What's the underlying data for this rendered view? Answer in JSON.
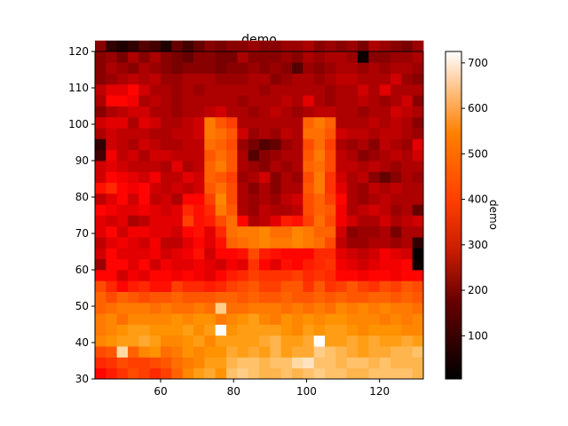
{
  "chart_data": {
    "type": "heatmap",
    "title": "demo",
    "colorbar_label": "demo",
    "colormap": "gist_heat",
    "xlim": [
      42,
      132
    ],
    "ylim": [
      30,
      120
    ],
    "x_ticks": [
      60,
      80,
      100,
      120
    ],
    "y_ticks": [
      30,
      40,
      50,
      60,
      70,
      80,
      90,
      100,
      110,
      120
    ],
    "color_range": [
      5,
      725
    ],
    "colorbar_ticks": [
      100,
      200,
      300,
      400,
      500,
      600,
      700
    ],
    "grid": false,
    "cell_size": 3,
    "x_start": 42,
    "y_start": 30,
    "rows_bottom_to_top": [
      [
        300,
        340,
        380,
        420,
        400,
        360,
        400,
        460,
        520,
        560,
        580,
        540,
        620,
        640,
        620,
        600,
        600,
        620,
        600,
        620,
        640,
        620,
        620,
        600,
        600,
        620,
        620,
        620,
        620,
        600
      ],
      [
        360,
        380,
        420,
        400,
        400,
        420,
        440,
        480,
        500,
        520,
        560,
        560,
        600,
        620,
        620,
        600,
        620,
        620,
        660,
        680,
        620,
        620,
        600,
        620,
        620,
        600,
        620,
        600,
        600,
        600
      ],
      [
        420,
        440,
        660,
        460,
        520,
        540,
        480,
        500,
        540,
        520,
        540,
        540,
        580,
        560,
        580,
        560,
        600,
        560,
        580,
        580,
        640,
        620,
        600,
        580,
        560,
        580,
        580,
        600,
        600,
        620
      ],
      [
        520,
        540,
        560,
        560,
        580,
        560,
        520,
        520,
        540,
        560,
        520,
        560,
        560,
        560,
        560,
        580,
        600,
        560,
        560,
        580,
        725,
        560,
        560,
        580,
        560,
        580,
        560,
        560,
        580,
        560
      ],
      [
        500,
        520,
        540,
        560,
        560,
        540,
        540,
        540,
        560,
        530,
        560,
        725,
        540,
        560,
        560,
        560,
        560,
        540,
        520,
        560,
        540,
        560,
        560,
        540,
        520,
        540,
        540,
        540,
        520,
        520
      ],
      [
        500,
        520,
        480,
        520,
        520,
        520,
        520,
        540,
        520,
        540,
        540,
        500,
        520,
        540,
        560,
        520,
        500,
        540,
        520,
        540,
        520,
        540,
        540,
        520,
        520,
        520,
        500,
        520,
        500,
        520
      ],
      [
        460,
        480,
        500,
        500,
        500,
        480,
        500,
        480,
        480,
        500,
        480,
        640,
        480,
        480,
        500,
        500,
        500,
        480,
        500,
        480,
        500,
        480,
        520,
        500,
        520,
        500,
        520,
        500,
        500,
        480
      ],
      [
        460,
        420,
        460,
        440,
        420,
        440,
        440,
        460,
        440,
        440,
        440,
        460,
        460,
        440,
        460,
        440,
        440,
        460,
        440,
        440,
        460,
        440,
        460,
        440,
        440,
        460,
        460,
        440,
        460,
        440
      ],
      [
        420,
        360,
        300,
        340,
        360,
        320,
        320,
        400,
        360,
        360,
        340,
        360,
        400,
        420,
        440,
        400,
        400,
        440,
        440,
        380,
        440,
        380,
        400,
        440,
        400,
        380,
        420,
        400,
        440,
        420
      ],
      [
        300,
        300,
        240,
        280,
        260,
        300,
        300,
        280,
        300,
        280,
        260,
        300,
        340,
        360,
        400,
        380,
        380,
        380,
        400,
        360,
        380,
        360,
        300,
        300,
        280,
        300,
        300,
        280,
        300,
        300
      ],
      [
        180,
        300,
        300,
        260,
        300,
        240,
        280,
        260,
        260,
        280,
        260,
        240,
        280,
        260,
        380,
        300,
        260,
        320,
        300,
        340,
        360,
        380,
        280,
        260,
        240,
        260,
        280,
        280,
        300,
        20
      ],
      [
        240,
        300,
        260,
        260,
        260,
        280,
        240,
        260,
        280,
        320,
        240,
        300,
        300,
        320,
        420,
        340,
        320,
        300,
        300,
        300,
        360,
        360,
        260,
        240,
        220,
        240,
        280,
        260,
        240,
        10
      ],
      [
        220,
        260,
        280,
        260,
        240,
        280,
        220,
        220,
        260,
        300,
        260,
        320,
        460,
        480,
        500,
        520,
        500,
        500,
        520,
        500,
        480,
        420,
        220,
        180,
        180,
        200,
        200,
        180,
        200,
        60
      ],
      [
        260,
        300,
        240,
        280,
        280,
        260,
        260,
        240,
        300,
        320,
        260,
        360,
        480,
        500,
        500,
        520,
        480,
        480,
        520,
        500,
        460,
        460,
        240,
        160,
        180,
        180,
        200,
        140,
        200,
        200
      ],
      [
        260,
        240,
        260,
        200,
        220,
        260,
        260,
        260,
        400,
        320,
        340,
        420,
        480,
        300,
        200,
        220,
        260,
        340,
        320,
        400,
        480,
        420,
        280,
        240,
        200,
        200,
        240,
        200,
        220,
        240
      ],
      [
        300,
        280,
        260,
        260,
        280,
        260,
        240,
        260,
        360,
        320,
        360,
        500,
        440,
        200,
        180,
        220,
        200,
        200,
        220,
        420,
        460,
        440,
        280,
        200,
        220,
        240,
        220,
        180,
        200,
        120
      ],
      [
        220,
        260,
        300,
        240,
        300,
        220,
        240,
        200,
        300,
        300,
        400,
        520,
        420,
        200,
        180,
        200,
        180,
        220,
        240,
        420,
        460,
        400,
        300,
        200,
        180,
        200,
        220,
        200,
        200,
        200
      ],
      [
        320,
        360,
        300,
        280,
        300,
        240,
        220,
        240,
        220,
        240,
        440,
        480,
        420,
        200,
        160,
        200,
        160,
        200,
        200,
        440,
        500,
        380,
        260,
        200,
        180,
        220,
        200,
        220,
        200,
        200
      ],
      [
        240,
        300,
        280,
        260,
        240,
        280,
        220,
        220,
        260,
        240,
        460,
        440,
        400,
        180,
        200,
        240,
        160,
        200,
        180,
        420,
        500,
        380,
        240,
        200,
        220,
        160,
        120,
        160,
        200,
        180
      ],
      [
        240,
        260,
        240,
        220,
        220,
        220,
        200,
        260,
        200,
        220,
        460,
        500,
        440,
        200,
        180,
        160,
        200,
        180,
        200,
        460,
        480,
        420,
        220,
        220,
        200,
        220,
        200,
        180,
        200,
        200
      ],
      [
        80,
        280,
        220,
        240,
        200,
        240,
        240,
        220,
        220,
        220,
        440,
        480,
        440,
        200,
        100,
        160,
        180,
        200,
        200,
        440,
        500,
        420,
        220,
        200,
        160,
        180,
        200,
        220,
        200,
        240
      ],
      [
        60,
        240,
        220,
        200,
        240,
        220,
        200,
        200,
        220,
        220,
        480,
        460,
        420,
        180,
        140,
        100,
        120,
        180,
        200,
        420,
        480,
        400,
        200,
        180,
        200,
        160,
        220,
        200,
        180,
        260
      ],
      [
        200,
        240,
        220,
        220,
        220,
        200,
        200,
        220,
        220,
        240,
        500,
        480,
        440,
        240,
        180,
        200,
        180,
        220,
        200,
        480,
        480,
        440,
        240,
        220,
        220,
        200,
        220,
        220,
        200,
        180
      ],
      [
        240,
        260,
        260,
        200,
        260,
        240,
        200,
        200,
        220,
        240,
        500,
        440,
        400,
        200,
        200,
        200,
        200,
        200,
        200,
        460,
        500,
        460,
        200,
        200,
        200,
        220,
        200,
        220,
        200,
        160
      ],
      [
        160,
        200,
        220,
        240,
        240,
        200,
        200,
        180,
        200,
        200,
        220,
        240,
        200,
        200,
        180,
        200,
        220,
        200,
        180,
        200,
        220,
        220,
        200,
        200,
        180,
        200,
        200,
        240,
        220,
        200
      ],
      [
        200,
        300,
        300,
        280,
        200,
        220,
        200,
        180,
        200,
        200,
        200,
        200,
        200,
        180,
        200,
        200,
        200,
        220,
        200,
        260,
        200,
        180,
        200,
        200,
        220,
        200,
        180,
        200,
        240,
        160
      ],
      [
        220,
        260,
        260,
        300,
        240,
        200,
        200,
        180,
        200,
        180,
        200,
        200,
        200,
        200,
        200,
        180,
        200,
        200,
        200,
        200,
        200,
        180,
        200,
        200,
        240,
        200,
        260,
        200,
        200,
        200
      ],
      [
        160,
        180,
        200,
        220,
        200,
        220,
        180,
        180,
        200,
        200,
        200,
        180,
        180,
        180,
        200,
        200,
        160,
        180,
        200,
        200,
        180,
        200,
        220,
        220,
        200,
        200,
        200,
        240,
        180,
        160
      ],
      [
        160,
        200,
        180,
        160,
        200,
        180,
        160,
        140,
        160,
        160,
        160,
        140,
        160,
        160,
        180,
        160,
        180,
        160,
        100,
        180,
        160,
        180,
        200,
        200,
        180,
        200,
        180,
        200,
        200,
        180
      ],
      [
        160,
        180,
        140,
        200,
        160,
        200,
        160,
        140,
        120,
        160,
        160,
        140,
        140,
        200,
        160,
        160,
        160,
        180,
        160,
        200,
        180,
        200,
        200,
        180,
        20,
        160,
        160,
        180,
        180,
        200
      ],
      [
        160,
        60,
        40,
        60,
        100,
        80,
        40,
        120,
        80,
        120,
        160,
        140,
        160,
        160,
        180,
        160,
        160,
        180,
        180,
        200,
        160,
        180,
        160,
        180,
        140,
        200,
        180,
        160,
        140,
        180
      ]
    ]
  }
}
